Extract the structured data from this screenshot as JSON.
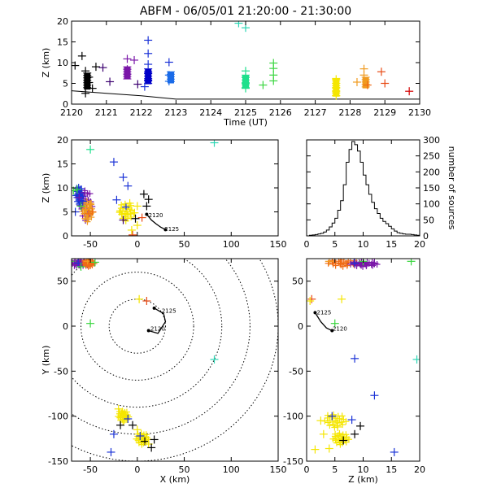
{
  "title": "ABFM - 06/05/01 21:20:00 - 21:30:00",
  "chart_data": [
    {
      "id": "time_height",
      "type": "scatter",
      "xlabel": "Time (UT)",
      "ylabel": "Z (km)",
      "xlim": [
        2120,
        2130
      ],
      "ylim": [
        0,
        20
      ],
      "xticks": [
        2120,
        2121,
        2122,
        2123,
        2124,
        2125,
        2126,
        2127,
        2128,
        2129,
        2130
      ],
      "yticks": [
        0,
        5,
        10,
        15,
        20
      ],
      "line": [
        [
          2120,
          3.2
        ],
        [
          2121,
          2.6
        ],
        [
          2122,
          2.0
        ],
        [
          2123,
          1.2
        ],
        [
          2124,
          1.2
        ],
        [
          2125,
          1.2
        ],
        [
          2126,
          1.2
        ],
        [
          2127,
          1.2
        ],
        [
          2128,
          1.2
        ],
        [
          2129,
          1.2
        ],
        [
          2130,
          1.2
        ]
      ],
      "points": [
        {
          "x": 2120.1,
          "y": 9.3,
          "c": "#000000"
        },
        {
          "x": 2120.3,
          "y": 11.6,
          "c": "#000000"
        },
        {
          "x": 2120.4,
          "y": 8.0,
          "c": "#000000"
        },
        {
          "x": 2120.5,
          "y": 6.5,
          "c": "#000000"
        },
        {
          "x": 2120.5,
          "y": 5.2,
          "c": "#000000"
        },
        {
          "x": 2120.6,
          "y": 3.8,
          "c": "#000000"
        },
        {
          "x": 2120.4,
          "y": 2.6,
          "c": "#000000"
        },
        {
          "x": 2120.7,
          "y": 9.0,
          "c": "#000000"
        },
        {
          "x": 2121.1,
          "y": 5.4,
          "c": "#3b0070"
        },
        {
          "x": 2120.9,
          "y": 8.8,
          "c": "#3b0070"
        },
        {
          "x": 2121.6,
          "y": 10.9,
          "c": "#7a16a8"
        },
        {
          "x": 2121.6,
          "y": 8.4,
          "c": "#7a16a8"
        },
        {
          "x": 2121.6,
          "y": 7.2,
          "c": "#7a16a8"
        },
        {
          "x": 2121.8,
          "y": 10.6,
          "c": "#7a16a8"
        },
        {
          "x": 2121.9,
          "y": 4.8,
          "c": "#3b0070"
        },
        {
          "x": 2122.2,
          "y": 15.4,
          "c": "#1a32d6"
        },
        {
          "x": 2122.2,
          "y": 12.2,
          "c": "#1a32d6"
        },
        {
          "x": 2122.2,
          "y": 9.6,
          "c": "#1a32d6"
        },
        {
          "x": 2122.2,
          "y": 7.5,
          "c": "#0000c8"
        },
        {
          "x": 2122.2,
          "y": 5.8,
          "c": "#0000c8"
        },
        {
          "x": 2122.1,
          "y": 4.2,
          "c": "#1a32d6"
        },
        {
          "x": 2122.8,
          "y": 10.1,
          "c": "#1a32d6"
        },
        {
          "x": 2122.8,
          "y": 7.0,
          "c": "#1a6be8"
        },
        {
          "x": 2122.8,
          "y": 5.5,
          "c": "#1a6be8"
        },
        {
          "x": 2124.8,
          "y": 19.5,
          "c": "#2bd6b4"
        },
        {
          "x": 2125.0,
          "y": 18.4,
          "c": "#2bd6b4"
        },
        {
          "x": 2125.0,
          "y": 8.0,
          "c": "#1ee08c"
        },
        {
          "x": 2125.0,
          "y": 6.5,
          "c": "#1ee08c"
        },
        {
          "x": 2125.0,
          "y": 5.0,
          "c": "#1ee08c"
        },
        {
          "x": 2125.0,
          "y": 3.8,
          "c": "#1ee08c"
        },
        {
          "x": 2125.5,
          "y": 4.6,
          "c": "#3ad640"
        },
        {
          "x": 2125.8,
          "y": 9.9,
          "c": "#3ad640"
        },
        {
          "x": 2125.8,
          "y": 8.6,
          "c": "#3ad640"
        },
        {
          "x": 2125.8,
          "y": 7.0,
          "c": "#3ad640"
        },
        {
          "x": 2125.8,
          "y": 5.6,
          "c": "#3ad640"
        },
        {
          "x": 2127.6,
          "y": 6.0,
          "c": "#f5e600"
        },
        {
          "x": 2127.6,
          "y": 5.0,
          "c": "#f5e600"
        },
        {
          "x": 2127.6,
          "y": 4.0,
          "c": "#f5e600"
        },
        {
          "x": 2127.6,
          "y": 3.0,
          "c": "#f5e600"
        },
        {
          "x": 2127.6,
          "y": 2.0,
          "c": "#f5e600"
        },
        {
          "x": 2128.4,
          "y": 8.5,
          "c": "#f09a1e"
        },
        {
          "x": 2128.4,
          "y": 7.0,
          "c": "#f09a1e"
        },
        {
          "x": 2128.2,
          "y": 5.3,
          "c": "#f09a1e"
        },
        {
          "x": 2128.5,
          "y": 4.6,
          "c": "#f06a14"
        },
        {
          "x": 2128.9,
          "y": 7.8,
          "c": "#e84a14"
        },
        {
          "x": 2129.0,
          "y": 5.0,
          "c": "#e84a14"
        },
        {
          "x": 2129.7,
          "y": 3.1,
          "c": "#d40000"
        }
      ],
      "bars": [
        {
          "x": 2120.45,
          "y0": 3.5,
          "y1": 7.5,
          "c": "#000000"
        },
        {
          "x": 2121.6,
          "y0": 6.0,
          "y1": 9.0,
          "c": "#7a16a8"
        },
        {
          "x": 2122.2,
          "y0": 4.8,
          "y1": 8.5,
          "c": "#0000c8"
        },
        {
          "x": 2122.85,
          "y0": 5.0,
          "y1": 7.8,
          "c": "#1a6be8"
        },
        {
          "x": 2125.0,
          "y0": 3.8,
          "y1": 7.0,
          "c": "#1ee08c"
        },
        {
          "x": 2127.6,
          "y0": 1.8,
          "y1": 6.2,
          "c": "#f5e600"
        },
        {
          "x": 2128.45,
          "y0": 3.8,
          "y1": 6.5,
          "c": "#f09a1e"
        }
      ]
    },
    {
      "id": "x_z",
      "type": "scatter",
      "xlabel": "",
      "ylabel": "Z (km)",
      "xlim": [
        -70,
        150
      ],
      "ylim": [
        0,
        20
      ],
      "xticks": [
        -50,
        0,
        50,
        100,
        150
      ],
      "yticks": [
        0,
        5,
        10,
        15,
        20
      ],
      "track": [
        [
          10,
          4.5
        ],
        [
          15,
          3.3
        ],
        [
          20,
          2.5
        ],
        [
          25,
          1.8
        ],
        [
          30,
          1.3
        ]
      ],
      "track_labels": [
        {
          "text": "2120",
          "x": 12,
          "y": 3.9
        },
        {
          "text": "2125",
          "x": 29,
          "y": 1.0
        }
      ],
      "points": [
        {
          "x": -64,
          "y": 9.7,
          "c": "#3ad640"
        },
        {
          "x": -62,
          "y": 8.0,
          "c": "#7a16a8"
        },
        {
          "x": -58,
          "y": 7.2,
          "c": "#1a32d6"
        },
        {
          "x": -55,
          "y": 5.5,
          "c": "#f09a1e"
        },
        {
          "x": -52,
          "y": 4.6,
          "c": "#f06a14"
        },
        {
          "x": -50,
          "y": 6.5,
          "c": "#f09a1e"
        },
        {
          "x": -48,
          "y": 5.0,
          "c": "#f06a14"
        },
        {
          "x": -56,
          "y": 9.0,
          "c": "#7a16a8"
        },
        {
          "x": -60,
          "y": 6.2,
          "c": "#3ad640"
        },
        {
          "x": -53,
          "y": 3.5,
          "c": "#f09a1e"
        },
        {
          "x": -66,
          "y": 5.0,
          "c": "#1a32d6"
        },
        {
          "x": -68,
          "y": 9.4,
          "c": "#3ad640"
        },
        {
          "x": -50,
          "y": 18.0,
          "c": "#1ee08c"
        },
        {
          "x": -25,
          "y": 15.4,
          "c": "#1a32d6"
        },
        {
          "x": -15,
          "y": 12.2,
          "c": "#1a32d6"
        },
        {
          "x": -10,
          "y": 10.4,
          "c": "#1a32d6"
        },
        {
          "x": -22,
          "y": 7.5,
          "c": "#1a32d6"
        },
        {
          "x": -12,
          "y": 6.0,
          "c": "#1a32d6"
        },
        {
          "x": 7,
          "y": 8.7,
          "c": "#000000"
        },
        {
          "x": 12,
          "y": 7.6,
          "c": "#000000"
        },
        {
          "x": 10,
          "y": 6.2,
          "c": "#000000"
        },
        {
          "x": -18,
          "y": 5.2,
          "c": "#f5e600"
        },
        {
          "x": -12,
          "y": 4.6,
          "c": "#f5e600"
        },
        {
          "x": -8,
          "y": 6.8,
          "c": "#f5e600"
        },
        {
          "x": 5,
          "y": 3.8,
          "c": "#e84a14"
        },
        {
          "x": 0,
          "y": 6.2,
          "c": "#f5e600"
        },
        {
          "x": -3,
          "y": 4.8,
          "c": "#f5e600"
        },
        {
          "x": 82,
          "y": 19.4,
          "c": "#2bd6b4"
        },
        {
          "x": -6,
          "y": 1.2,
          "c": "#f5e600"
        },
        {
          "x": 0,
          "y": 2.2,
          "c": "#f5e600"
        },
        {
          "x": -5,
          "y": 0.2,
          "c": "#e84a14"
        },
        {
          "x": -15,
          "y": 3.3,
          "c": "#3b0070"
        },
        {
          "x": -2,
          "y": 3.6,
          "c": "#000000"
        }
      ],
      "clusters": [
        {
          "x": -55,
          "y": 6.5,
          "rx": 7,
          "ry": 3.5,
          "c": "#7a16a8"
        },
        {
          "x": -53,
          "y": 5.2,
          "rx": 6,
          "ry": 2.4,
          "c": "#f09a1e"
        },
        {
          "x": -62,
          "y": 8.5,
          "rx": 4,
          "ry": 2.0,
          "c": "#1a32d6"
        },
        {
          "x": -12,
          "y": 5.0,
          "rx": 8,
          "ry": 2.0,
          "c": "#f5e600"
        }
      ]
    },
    {
      "id": "histogram",
      "type": "bar",
      "xlabel": "",
      "ylabel": "number of sources",
      "xlim": [
        0,
        20
      ],
      "ylim": [
        0,
        300
      ],
      "xticks": [
        0,
        5,
        10,
        15,
        20
      ],
      "yticks": [
        0,
        50,
        100,
        150,
        200,
        250,
        300
      ],
      "bin_width": 0.5,
      "values": [
        0,
        2,
        3,
        4,
        6,
        8,
        12,
        18,
        28,
        40,
        55,
        80,
        110,
        160,
        230,
        270,
        295,
        285,
        265,
        230,
        190,
        160,
        130,
        105,
        85,
        70,
        55,
        45,
        38,
        30,
        22,
        15,
        10,
        8,
        6,
        5,
        5,
        4,
        3,
        2
      ]
    },
    {
      "id": "x_y",
      "type": "scatter",
      "xlabel": "X (km)",
      "ylabel": "Y (km)",
      "xlim": [
        -70,
        150
      ],
      "ylim": [
        -150,
        75
      ],
      "xticks": [
        -50,
        0,
        50,
        100,
        150
      ],
      "yticks": [
        -150,
        -100,
        -50,
        0,
        50
      ],
      "range_rings_km": [
        30,
        60,
        90,
        120,
        150
      ],
      "track": [
        [
          12,
          -5
        ],
        [
          22,
          -8
        ],
        [
          30,
          5
        ],
        [
          28,
          14
        ],
        [
          18,
          20
        ]
      ],
      "track_labels": [
        {
          "text": "2125",
          "x": 26,
          "y": 15
        },
        {
          "text": "2120",
          "x": 14,
          "y": -5
        }
      ],
      "points": [
        {
          "x": -70,
          "y": 72,
          "c": "#3ad640"
        },
        {
          "x": -67,
          "y": 68,
          "c": "#7a16a8"
        },
        {
          "x": -63,
          "y": 70,
          "c": "#1a32d6"
        },
        {
          "x": -53,
          "y": 72,
          "c": "#f09a1e"
        },
        {
          "x": -50,
          "y": 68,
          "c": "#f06a14"
        },
        {
          "x": -45,
          "y": 71,
          "c": "#3ad640"
        },
        {
          "x": -60,
          "y": 66,
          "c": "#3ad640"
        },
        {
          "x": 10,
          "y": 28,
          "c": "#e84a14"
        },
        {
          "x": 2,
          "y": 30,
          "c": "#f5e600"
        },
        {
          "x": -50,
          "y": 3,
          "c": "#3ad640"
        },
        {
          "x": 82,
          "y": -37,
          "c": "#2bd6b4"
        },
        {
          "x": -20,
          "y": -92,
          "c": "#f5e600"
        },
        {
          "x": -15,
          "y": -98,
          "c": "#f5e600"
        },
        {
          "x": -10,
          "y": -103,
          "c": "#1a32d6"
        },
        {
          "x": -5,
          "y": -110,
          "c": "#000000"
        },
        {
          "x": 0,
          "y": -115,
          "c": "#f5e600"
        },
        {
          "x": 3,
          "y": -122,
          "c": "#1a32d6"
        },
        {
          "x": 8,
          "y": -128,
          "c": "#000000"
        },
        {
          "x": 12,
          "y": -131,
          "c": "#f5e600"
        },
        {
          "x": 15,
          "y": -135,
          "c": "#000000"
        },
        {
          "x": -25,
          "y": -120,
          "c": "#1a32d6"
        },
        {
          "x": -28,
          "y": -140,
          "c": "#1a32d6"
        },
        {
          "x": 18,
          "y": -126,
          "c": "#000000"
        },
        {
          "x": -18,
          "y": -110,
          "c": "#000000"
        }
      ],
      "clusters": [
        {
          "x": -60,
          "y": 70,
          "rx": 10,
          "ry": 4,
          "c": "#7a16a8"
        },
        {
          "x": -52,
          "y": 70,
          "rx": 6,
          "ry": 4,
          "c": "#f06a14"
        },
        {
          "x": -15,
          "y": -100,
          "rx": 6,
          "ry": 7,
          "c": "#f5e600"
        },
        {
          "x": 5,
          "y": -125,
          "rx": 7,
          "ry": 7,
          "c": "#f5e600"
        }
      ]
    },
    {
      "id": "z_y",
      "type": "scatter",
      "xlabel": "Z (km)",
      "ylabel": "",
      "xlim": [
        0,
        20
      ],
      "ylim": [
        -150,
        75
      ],
      "xticks": [
        0,
        5,
        10,
        15,
        20
      ],
      "yticks": [
        -150,
        -100,
        -50,
        0,
        50
      ],
      "track": [
        [
          1.5,
          15
        ],
        [
          2.5,
          5
        ],
        [
          3.5,
          -2
        ],
        [
          4.5,
          -5
        ]
      ],
      "track_labels": [
        {
          "text": "2125",
          "x": 1.8,
          "y": 13
        },
        {
          "text": "2120",
          "x": 4.6,
          "y": -5
        }
      ],
      "points": [
        {
          "x": 4.0,
          "y": 72,
          "c": "#f09a1e"
        },
        {
          "x": 6.0,
          "y": 70,
          "c": "#f06a14"
        },
        {
          "x": 8.5,
          "y": 70,
          "c": "#1a32d6"
        },
        {
          "x": 10.0,
          "y": 72,
          "c": "#3ad640"
        },
        {
          "x": 12.0,
          "y": 70,
          "c": "#7a16a8"
        },
        {
          "x": 18.5,
          "y": 72,
          "c": "#3ad640"
        },
        {
          "x": 0.9,
          "y": 30,
          "c": "#e84a14"
        },
        {
          "x": 0.6,
          "y": 28,
          "c": "#f5e600"
        },
        {
          "x": 6.2,
          "y": 30,
          "c": "#f5e600"
        },
        {
          "x": 5.0,
          "y": 3,
          "c": "#3ad640"
        },
        {
          "x": 8.5,
          "y": -36,
          "c": "#1a32d6"
        },
        {
          "x": 19.5,
          "y": -37,
          "c": "#2bd6b4"
        },
        {
          "x": 12.0,
          "y": -77,
          "c": "#1a32d6"
        },
        {
          "x": 2.5,
          "y": -105,
          "c": "#f5e600"
        },
        {
          "x": 3.0,
          "y": -120,
          "c": "#f5e600"
        },
        {
          "x": 4.5,
          "y": -100,
          "c": "#1a32d6"
        },
        {
          "x": 5.5,
          "y": -112,
          "c": "#f5e600"
        },
        {
          "x": 6.5,
          "y": -127,
          "c": "#000000"
        },
        {
          "x": 8.0,
          "y": -104,
          "c": "#1a32d6"
        },
        {
          "x": 8.5,
          "y": -120,
          "c": "#000000"
        },
        {
          "x": 15.5,
          "y": -140,
          "c": "#1a32d6"
        },
        {
          "x": 1.5,
          "y": -137,
          "c": "#f5e600"
        },
        {
          "x": 4.0,
          "y": -136,
          "c": "#f5e600"
        },
        {
          "x": 9.5,
          "y": -111,
          "c": "#000000"
        }
      ],
      "clusters": [
        {
          "x": 6.5,
          "y": 70,
          "rx": 3,
          "ry": 4,
          "c": "#f06a14"
        },
        {
          "x": 10.0,
          "y": 69,
          "rx": 2.5,
          "ry": 3,
          "c": "#7a16a8"
        },
        {
          "x": 5.0,
          "y": -105,
          "rx": 2.0,
          "ry": 8,
          "c": "#f5e600"
        },
        {
          "x": 6.0,
          "y": -125,
          "rx": 1.5,
          "ry": 7,
          "c": "#f5e600"
        }
      ]
    }
  ]
}
